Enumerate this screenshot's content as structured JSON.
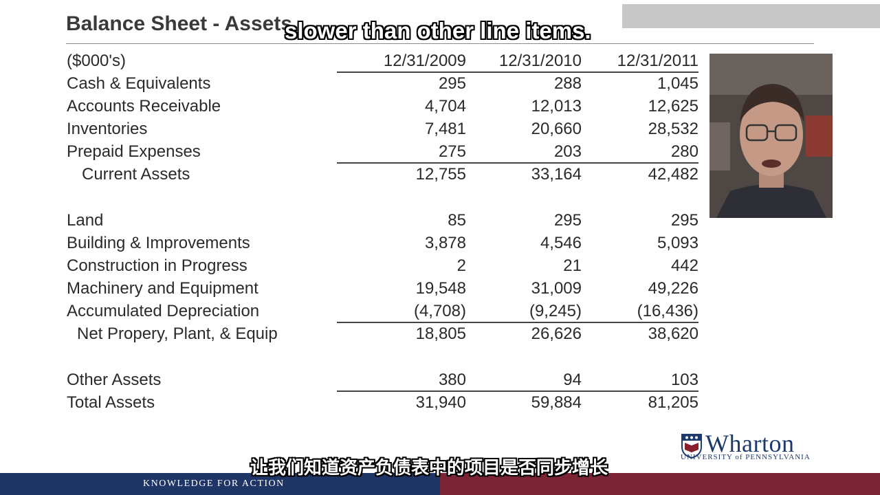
{
  "slide": {
    "title": "Balance Sheet - Assets",
    "caption_en": "slower than other line items.",
    "caption_zh": "让我们知道资产负债表中的项目是否同步增长"
  },
  "table": {
    "units_label": "($000's)",
    "columns": [
      "12/31/2009",
      "12/31/2010",
      "12/31/2011"
    ],
    "rows": [
      {
        "label": "Cash & Equivalents",
        "values": [
          "295",
          "288",
          "1,045"
        ]
      },
      {
        "label": "Accounts Receivable",
        "values": [
          "4,704",
          "12,013",
          "12,625"
        ]
      },
      {
        "label": "Inventories",
        "values": [
          "7,481",
          "20,660",
          "28,532"
        ]
      },
      {
        "label": "Prepaid Expenses",
        "values": [
          "275",
          "203",
          "280"
        ]
      },
      {
        "label": "Current Assets",
        "values": [
          "12,755",
          "33,164",
          "42,482"
        ]
      },
      {
        "label": "Land",
        "values": [
          "85",
          "295",
          "295"
        ]
      },
      {
        "label": "Building & Improvements",
        "values": [
          "3,878",
          "4,546",
          "5,093"
        ]
      },
      {
        "label": "Construction in Progress",
        "values": [
          "2",
          "21",
          "442"
        ]
      },
      {
        "label": "Machinery and Equipment",
        "values": [
          "19,548",
          "31,009",
          "49,226"
        ]
      },
      {
        "label": "Accumulated Depreciation",
        "values": [
          "(4,708)",
          "(9,245)",
          "(16,436)"
        ]
      },
      {
        "label": "Net Propery, Plant, & Equip",
        "values": [
          "18,805",
          "26,626",
          "38,620"
        ]
      },
      {
        "label": "Other Assets",
        "values": [
          "380",
          "94",
          "103"
        ]
      },
      {
        "label": "Total Assets",
        "values": [
          "31,940",
          "59,884",
          "81,205"
        ]
      }
    ]
  },
  "branding": {
    "wharton_name": "Wharton",
    "wharton_sub": "UNIVERSITY of PENNSYLVANIA",
    "footer_tagline": "KNOWLEDGE FOR ACTION",
    "colors": {
      "navy": "#1f3566",
      "maroon": "#7a2435"
    }
  },
  "icons": {
    "logo": "penn-shield-icon",
    "presenter": "presenter-video"
  }
}
